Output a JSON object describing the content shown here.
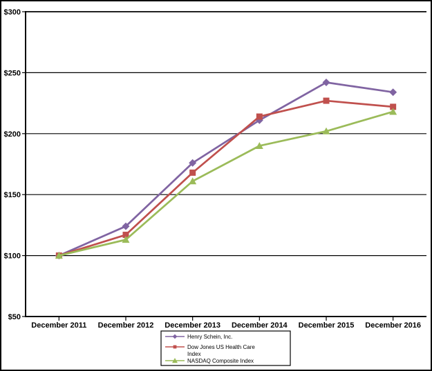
{
  "figure": {
    "background": "#FFFFFF",
    "border_color": "#000000"
  },
  "chart_data": {
    "type": "line",
    "title": "",
    "xlabel": "",
    "ylabel": "",
    "categories": [
      "December 2011",
      "December 2012",
      "December 2013",
      "December 2014",
      "December 2015",
      "December 2016"
    ],
    "series": [
      {
        "name": "Henry Schein, Inc.",
        "color": "#8064A2",
        "marker": "diamond",
        "values": [
          100,
          124,
          176,
          211,
          242,
          234
        ],
        "legend_lines": [
          "Henry Schein, Inc."
        ]
      },
      {
        "name": "Dow Jones US Health Care Index",
        "color": "#C0504D",
        "marker": "square",
        "values": [
          100,
          117,
          168,
          214,
          227,
          222
        ],
        "legend_lines": [
          "Dow Jones US Health Care",
          "Index"
        ]
      },
      {
        "name": "NASDAQ Composite Index",
        "color": "#9BBB59",
        "marker": "triangle",
        "values": [
          100,
          113,
          161,
          190,
          202,
          218
        ],
        "legend_lines": [
          "NASDAQ Composite Index"
        ]
      }
    ],
    "y_axis": {
      "tick_labels": [
        "$300",
        "$250",
        "$200",
        "$150",
        "$100",
        "$50"
      ],
      "tick_values": [
        300,
        250,
        200,
        150,
        100,
        50
      ],
      "range": [
        50,
        300
      ]
    },
    "grid": true,
    "grid_color": "#000000",
    "axis_color": "#000000",
    "text_color": "#000000",
    "legend_position": "bottom-center"
  }
}
